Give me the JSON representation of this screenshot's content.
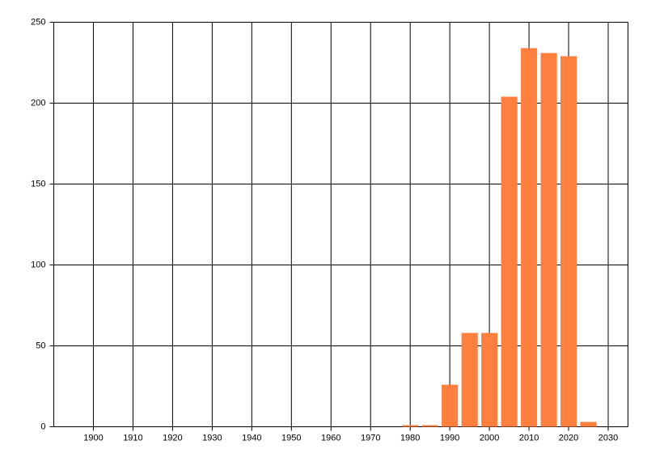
{
  "chart_data": {
    "type": "bar",
    "x": [
      1980,
      1985,
      1990,
      1995,
      2000,
      2005,
      2010,
      2015,
      2020,
      2025
    ],
    "values": [
      1,
      1,
      26,
      58,
      58,
      204,
      234,
      231,
      229,
      3
    ],
    "color": "#ff7f3f",
    "xlim": [
      1890,
      2035
    ],
    "xticks": [
      1900,
      1910,
      1920,
      1930,
      1940,
      1950,
      1960,
      1970,
      1980,
      1990,
      2000,
      2010,
      2020,
      2030
    ],
    "ylim": [
      0,
      250
    ],
    "yticks": [
      0,
      50,
      100,
      150,
      200,
      250
    ],
    "grid": true
  }
}
